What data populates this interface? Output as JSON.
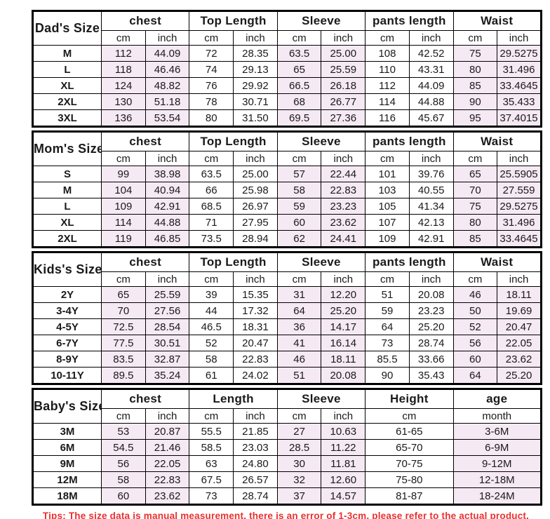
{
  "colors": {
    "background": "#ffffff",
    "border": "#000000",
    "text": "#1a1a1a",
    "shaded_cell": "#f5e9f3",
    "tip_text": "#e8312e"
  },
  "tip": "Tips: The size data is manual measurement, there is an error of 1-3cm, please refer to the actual product.",
  "tables": [
    {
      "title": "Dad's Size",
      "columns": [
        {
          "label": "chest",
          "units": [
            "cm",
            "inch"
          ],
          "shaded": true
        },
        {
          "label": "Top Length",
          "units": [
            "cm",
            "inch"
          ],
          "shaded": false
        },
        {
          "label": "Sleeve",
          "units": [
            "cm",
            "inch"
          ],
          "shaded": true
        },
        {
          "label": "pants length",
          "units": [
            "cm",
            "inch"
          ],
          "shaded": false
        },
        {
          "label": "Waist",
          "units": [
            "cm",
            "inch"
          ],
          "shaded": true
        }
      ],
      "rows": [
        {
          "size": "M",
          "values": [
            "112",
            "44.09",
            "72",
            "28.35",
            "63.5",
            "25.00",
            "108",
            "42.52",
            "75",
            "29.5275"
          ]
        },
        {
          "size": "L",
          "values": [
            "118",
            "46.46",
            "74",
            "29.13",
            "65",
            "25.59",
            "110",
            "43.31",
            "80",
            "31.496"
          ]
        },
        {
          "size": "XL",
          "values": [
            "124",
            "48.82",
            "76",
            "29.92",
            "66.5",
            "26.18",
            "112",
            "44.09",
            "85",
            "33.4645"
          ]
        },
        {
          "size": "2XL",
          "values": [
            "130",
            "51.18",
            "78",
            "30.71",
            "68",
            "26.77",
            "114",
            "44.88",
            "90",
            "35.433"
          ]
        },
        {
          "size": "3XL",
          "values": [
            "136",
            "53.54",
            "80",
            "31.50",
            "69.5",
            "27.36",
            "116",
            "45.67",
            "95",
            "37.4015"
          ]
        }
      ]
    },
    {
      "title": "Mom's Size",
      "columns": [
        {
          "label": "chest",
          "units": [
            "cm",
            "inch"
          ],
          "shaded": true
        },
        {
          "label": "Top Length",
          "units": [
            "cm",
            "inch"
          ],
          "shaded": false
        },
        {
          "label": "Sleeve",
          "units": [
            "cm",
            "inch"
          ],
          "shaded": true
        },
        {
          "label": "pants length",
          "units": [
            "cm",
            "inch"
          ],
          "shaded": false
        },
        {
          "label": "Waist",
          "units": [
            "cm",
            "inch"
          ],
          "shaded": true
        }
      ],
      "rows": [
        {
          "size": "S",
          "values": [
            "99",
            "38.98",
            "63.5",
            "25.00",
            "57",
            "22.44",
            "101",
            "39.76",
            "65",
            "25.5905"
          ]
        },
        {
          "size": "M",
          "values": [
            "104",
            "40.94",
            "66",
            "25.98",
            "58",
            "22.83",
            "103",
            "40.55",
            "70",
            "27.559"
          ]
        },
        {
          "size": "L",
          "values": [
            "109",
            "42.91",
            "68.5",
            "26.97",
            "59",
            "23.23",
            "105",
            "41.34",
            "75",
            "29.5275"
          ]
        },
        {
          "size": "XL",
          "values": [
            "114",
            "44.88",
            "71",
            "27.95",
            "60",
            "23.62",
            "107",
            "42.13",
            "80",
            "31.496"
          ]
        },
        {
          "size": "2XL",
          "values": [
            "119",
            "46.85",
            "73.5",
            "28.94",
            "62",
            "24.41",
            "109",
            "42.91",
            "85",
            "33.4645"
          ]
        }
      ]
    },
    {
      "title": "Kids's Size",
      "columns": [
        {
          "label": "chest",
          "units": [
            "cm",
            "inch"
          ],
          "shaded": true
        },
        {
          "label": "Top Length",
          "units": [
            "cm",
            "inch"
          ],
          "shaded": false
        },
        {
          "label": "Sleeve",
          "units": [
            "cm",
            "inch"
          ],
          "shaded": true
        },
        {
          "label": "pants length",
          "units": [
            "cm",
            "inch"
          ],
          "shaded": false
        },
        {
          "label": "Waist",
          "units": [
            "cm",
            "inch"
          ],
          "shaded": true
        }
      ],
      "rows": [
        {
          "size": "2Y",
          "values": [
            "65",
            "25.59",
            "39",
            "15.35",
            "31",
            "12.20",
            "51",
            "20.08",
            "46",
            "18.11"
          ]
        },
        {
          "size": "3-4Y",
          "values": [
            "70",
            "27.56",
            "44",
            "17.32",
            "64",
            "25.20",
            "59",
            "23.23",
            "50",
            "19.69"
          ]
        },
        {
          "size": "4-5Y",
          "values": [
            "72.5",
            "28.54",
            "46.5",
            "18.31",
            "36",
            "14.17",
            "64",
            "25.20",
            "52",
            "20.47"
          ]
        },
        {
          "size": "6-7Y",
          "values": [
            "77.5",
            "30.51",
            "52",
            "20.47",
            "41",
            "16.14",
            "73",
            "28.74",
            "56",
            "22.05"
          ]
        },
        {
          "size": "8-9Y",
          "values": [
            "83.5",
            "32.87",
            "58",
            "22.83",
            "46",
            "18.11",
            "85.5",
            "33.66",
            "60",
            "23.62"
          ]
        },
        {
          "size": "10-11Y",
          "values": [
            "89.5",
            "35.24",
            "61",
            "24.02",
            "51",
            "20.08",
            "90",
            "35.43",
            "64",
            "25.20"
          ]
        }
      ]
    },
    {
      "title": "Baby's Size",
      "columns": [
        {
          "label": "chest",
          "units": [
            "cm",
            "inch"
          ],
          "shaded": true
        },
        {
          "label": "Length",
          "units": [
            "cm",
            "inch"
          ],
          "shaded": false
        },
        {
          "label": "Sleeve",
          "units": [
            "cm",
            "inch"
          ],
          "shaded": true
        },
        {
          "label": "Height",
          "units": [
            "cm"
          ],
          "shaded": false,
          "wide": true
        },
        {
          "label": "age",
          "units": [
            "month"
          ],
          "shaded": true,
          "wide": true
        }
      ],
      "rows": [
        {
          "size": "3M",
          "values": [
            "53",
            "20.87",
            "55.5",
            "21.85",
            "27",
            "10.63",
            "61-65",
            "3-6M"
          ]
        },
        {
          "size": "6M",
          "values": [
            "54.5",
            "21.46",
            "58.5",
            "23.03",
            "28.5",
            "11.22",
            "65-70",
            "6-9M"
          ]
        },
        {
          "size": "9M",
          "values": [
            "56",
            "22.05",
            "63",
            "24.80",
            "30",
            "11.81",
            "70-75",
            "9-12M"
          ]
        },
        {
          "size": "12M",
          "values": [
            "58",
            "22.83",
            "67.5",
            "26.57",
            "32",
            "12.60",
            "75-80",
            "12-18M"
          ]
        },
        {
          "size": "18M",
          "values": [
            "60",
            "23.62",
            "73",
            "28.74",
            "37",
            "14.57",
            "81-87",
            "18-24M"
          ]
        }
      ]
    }
  ]
}
